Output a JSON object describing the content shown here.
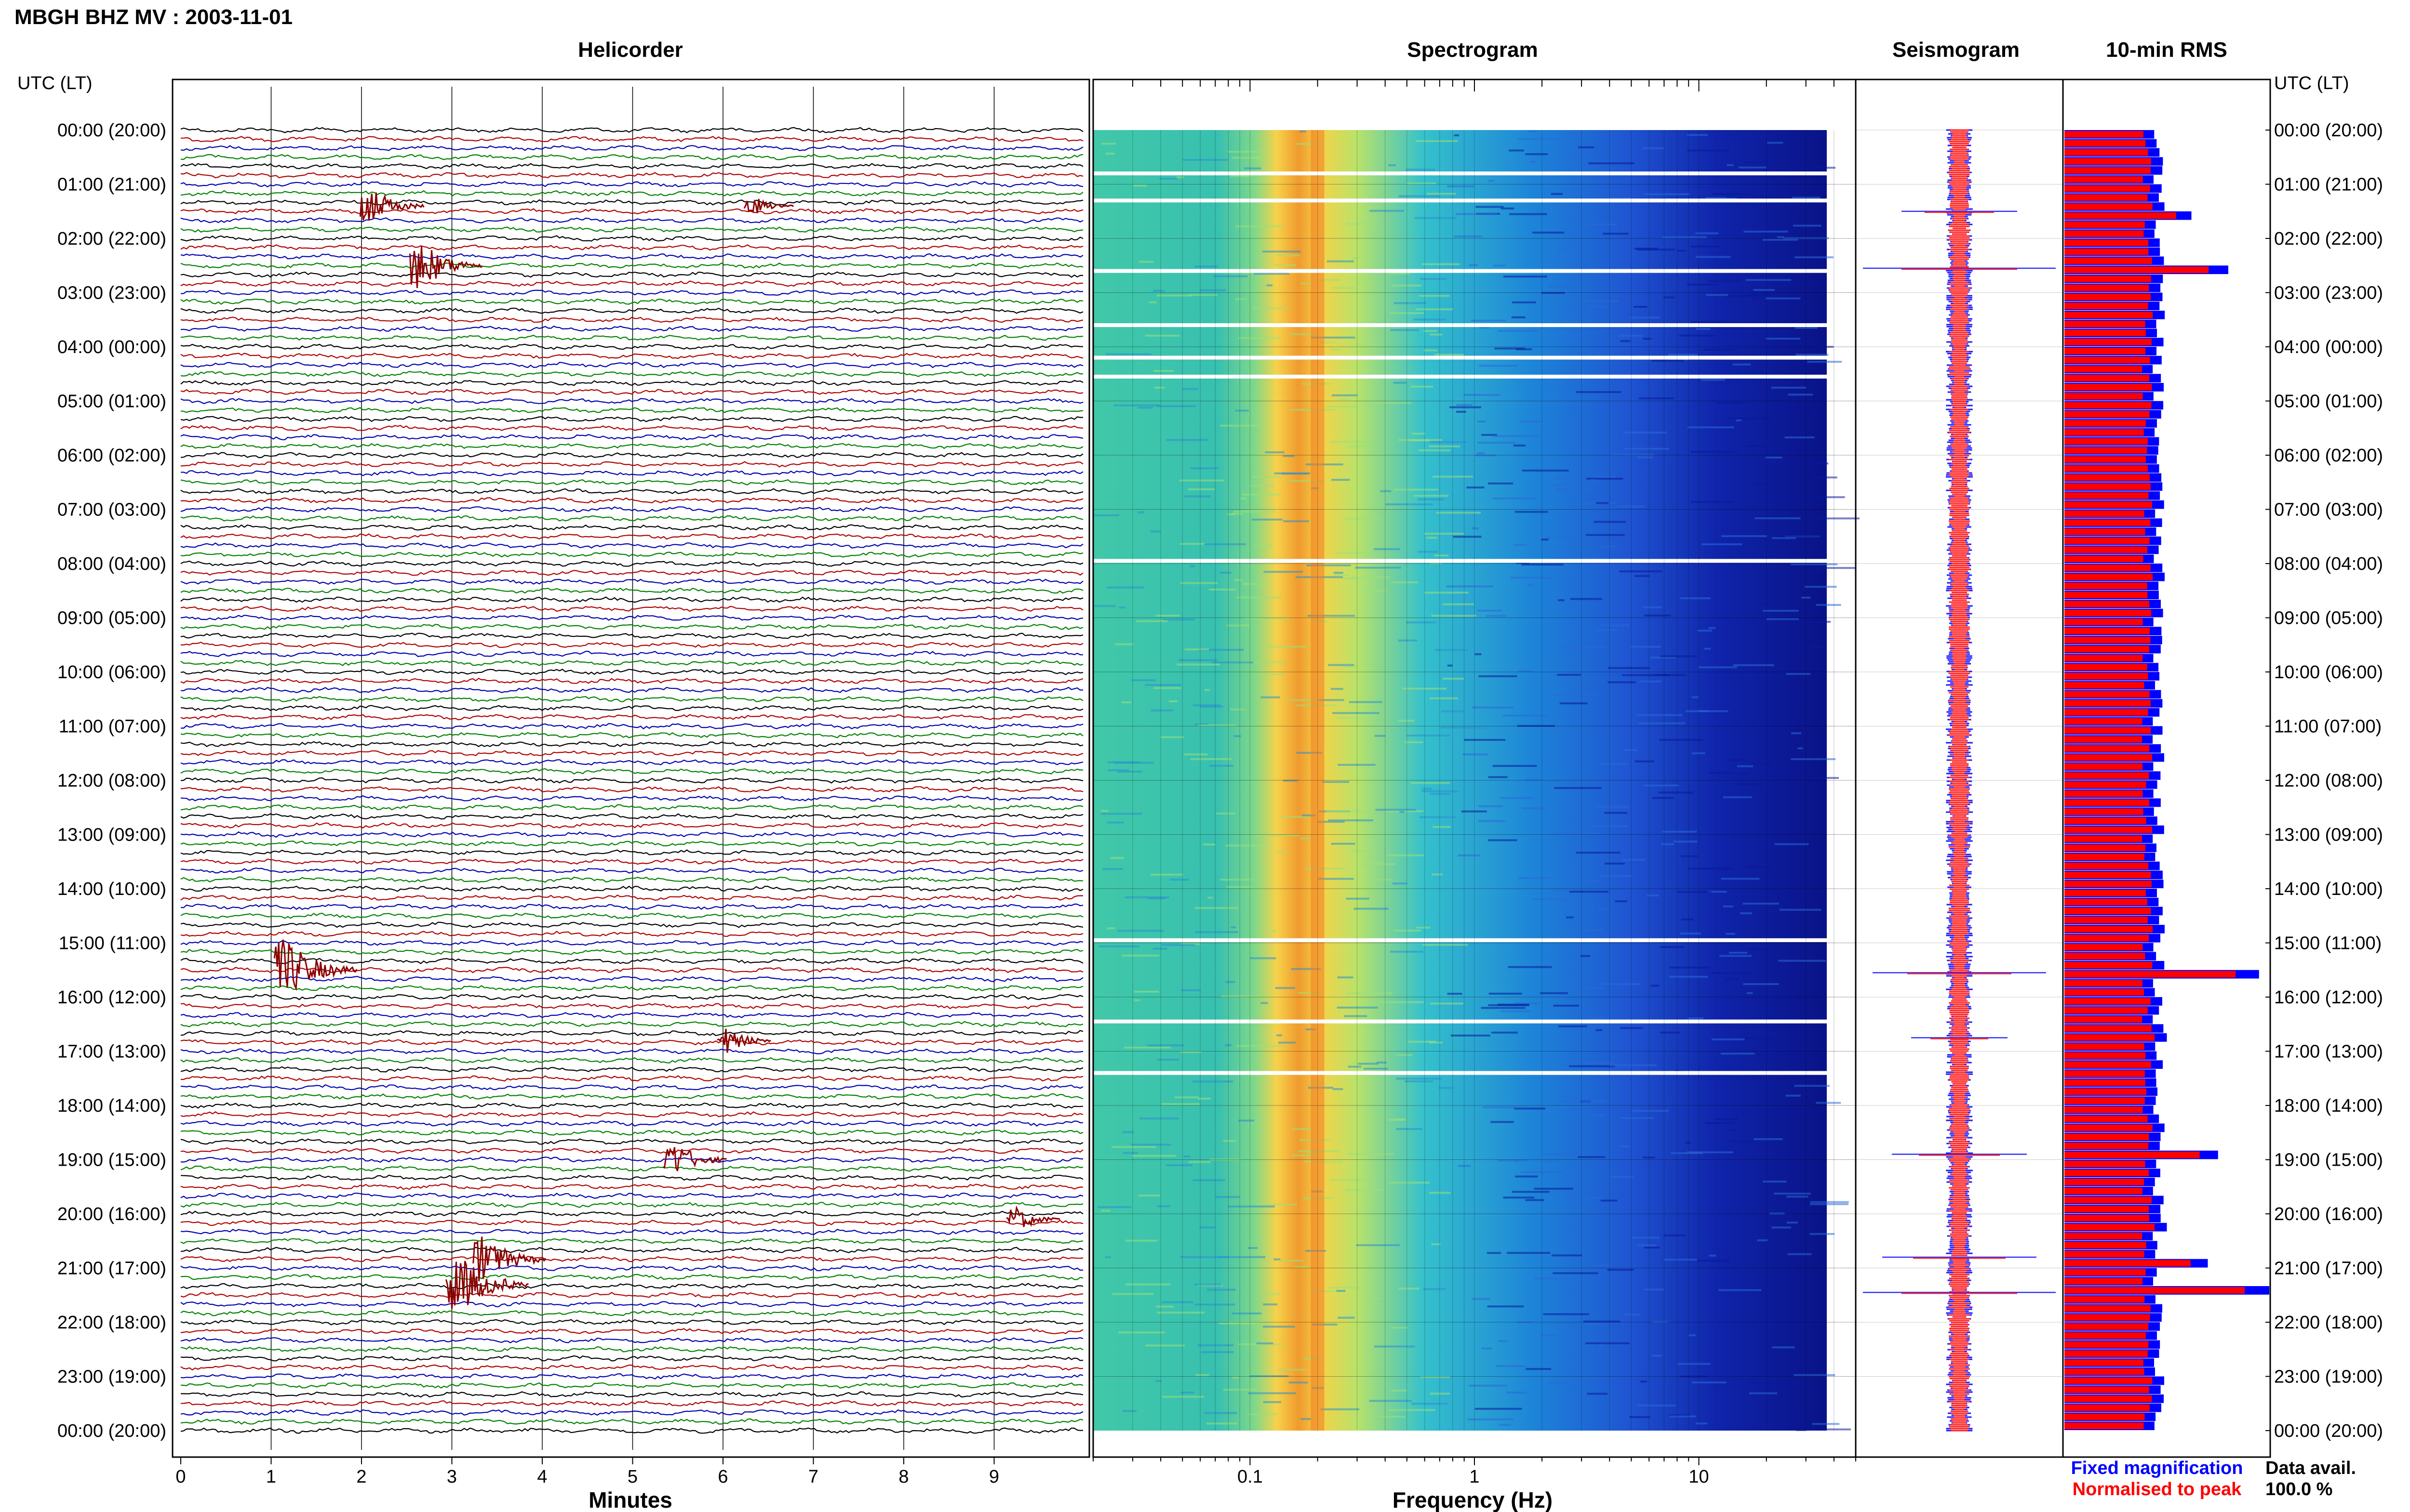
{
  "page": {
    "title": "MBGH BHZ MV : 2003-11-01",
    "time_axis_label": "UTC (LT)",
    "data_avail_label": "Data avail.",
    "data_avail_value": "100.0 %"
  },
  "panels": {
    "helicorder": "Helicorder",
    "spectrogram": "Spectrogram",
    "seismogram": "Seismogram",
    "rms": "10-min RMS"
  },
  "legend": {
    "fixed": "Fixed magnification",
    "normalised": "Normalised to peak"
  },
  "colors": {
    "trace_cycle": [
      "#000000",
      "#b00000",
      "#0000b0",
      "#008000"
    ],
    "event": "#8b0000",
    "rms_fixed": "#0000ff",
    "rms_normalised": "#ff0000",
    "grid": "#000000"
  },
  "chart_data": [
    {
      "type": "line",
      "title": "Helicorder",
      "xlabel": "Minutes",
      "x_ticks": [
        "0",
        "1",
        "2",
        "3",
        "4",
        "5",
        "6",
        "7",
        "8",
        "9"
      ],
      "xlim": [
        0,
        10
      ],
      "rows_per_hour": 6,
      "hours": 24,
      "y_ticks": [
        "00:00 (20:00)",
        "01:00 (21:00)",
        "02:00 (22:00)",
        "03:00 (23:00)",
        "04:00 (00:00)",
        "05:00 (01:00)",
        "06:00 (02:00)",
        "07:00 (03:00)",
        "08:00 (04:00)",
        "09:00 (05:00)",
        "10:00 (06:00)",
        "11:00 (07:00)",
        "12:00 (08:00)",
        "13:00 (09:00)",
        "14:00 (10:00)",
        "15:00 (11:00)",
        "16:00 (12:00)",
        "17:00 (13:00)",
        "18:00 (14:00)",
        "19:00 (15:00)",
        "20:00 (16:00)",
        "21:00 (17:00)",
        "22:00 (18:00)",
        "23:00 (19:00)",
        "00:00 (20:00)"
      ],
      "events": [
        {
          "hour": 1.4,
          "minute": 2.05,
          "amp": 3
        },
        {
          "hour": 1.4,
          "minute": 6.3,
          "amp": 1.5
        },
        {
          "hour": 2.5,
          "minute": 2.6,
          "amp": 4
        },
        {
          "hour": 15.5,
          "minute": 1.1,
          "amp": 5
        },
        {
          "hour": 16.8,
          "minute": 6.0,
          "amp": 2
        },
        {
          "hour": 19.0,
          "minute": 5.4,
          "amp": 3
        },
        {
          "hour": 20.1,
          "minute": 9.2,
          "amp": 2
        },
        {
          "hour": 20.85,
          "minute": 3.3,
          "amp": 4
        },
        {
          "hour": 21.3,
          "minute": 3.0,
          "amp": 5
        }
      ]
    },
    {
      "type": "heatmap",
      "title": "Spectrogram",
      "xlabel": "Frequency (Hz)",
      "x_scale": "log",
      "x_ticks": [
        "0.1",
        "1",
        "10"
      ],
      "xlim": [
        0.02,
        50
      ],
      "dominant_frequency_hz": 0.2,
      "gaps_hours": [
        0.8,
        1.3,
        2.6,
        3.6,
        4.2,
        4.55,
        7.95,
        14.95,
        16.45,
        17.4
      ]
    },
    {
      "type": "line",
      "title": "Seismogram",
      "spikes": [
        {
          "hour": 1.5,
          "amp": 0.6
        },
        {
          "hour": 2.55,
          "amp": 1.0
        },
        {
          "hour": 15.55,
          "amp": 0.9
        },
        {
          "hour": 16.75,
          "amp": 0.5
        },
        {
          "hour": 18.9,
          "amp": 0.7
        },
        {
          "hour": 20.8,
          "amp": 0.8
        },
        {
          "hour": 21.45,
          "amp": 1.0
        }
      ]
    },
    {
      "type": "bar",
      "title": "10-min RMS",
      "series": [
        {
          "name": "Fixed magnification"
        },
        {
          "name": "Normalised to peak"
        }
      ],
      "peaks": [
        {
          "hour": 1.55,
          "value": 0.62
        },
        {
          "hour": 2.55,
          "value": 0.8
        },
        {
          "hour": 15.55,
          "value": 0.95
        },
        {
          "hour": 16.75,
          "value": 0.5
        },
        {
          "hour": 18.95,
          "value": 0.75
        },
        {
          "hour": 20.3,
          "value": 0.5
        },
        {
          "hour": 20.9,
          "value": 0.7
        },
        {
          "hour": 21.45,
          "value": 1.0
        }
      ],
      "baseline": 0.46
    }
  ]
}
